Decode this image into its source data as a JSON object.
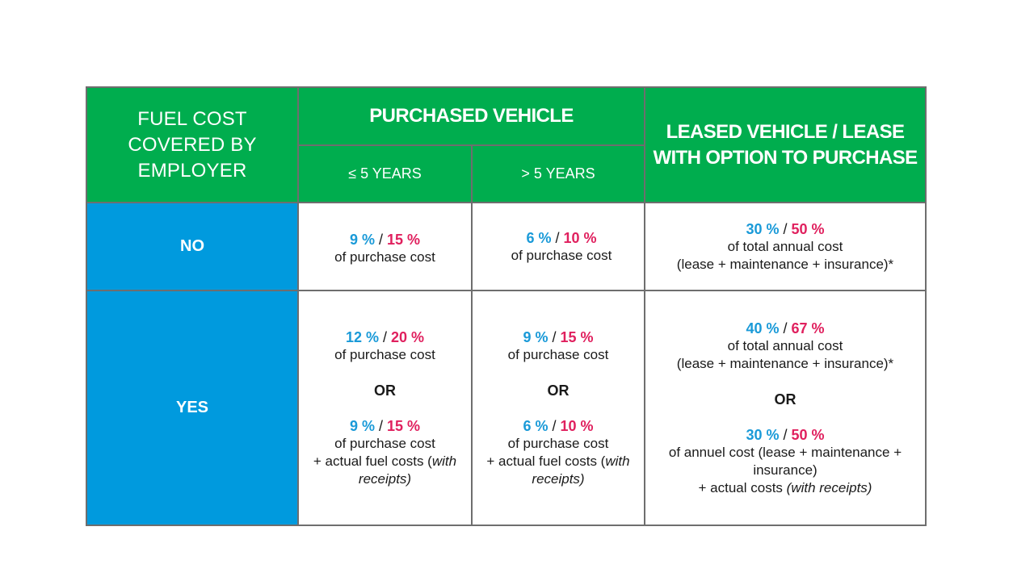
{
  "header": {
    "fuel_cost": [
      "FUEL COST",
      "COVERED BY",
      "EMPLOYER"
    ],
    "purchased": "PURCHASED VEHICLE",
    "le5": "≤ 5 YEARS",
    "gt5": "> 5 YEARS",
    "leased": [
      "LEASED VEHICLE / LEASE",
      "WITH OPTION TO PURCHASE"
    ]
  },
  "rows": {
    "no": {
      "label": "NO",
      "le5": {
        "a": "9 %",
        "b": "15 %",
        "text": "of purchase cost"
      },
      "gt5": {
        "a": "6 %",
        "b": "10 %",
        "text": "of purchase cost"
      },
      "leased": {
        "a": "30 %",
        "b": "50 %",
        "text1": "of total annual cost",
        "text2": "(lease + maintenance + insurance)*"
      }
    },
    "yes": {
      "label": "YES",
      "or": "OR",
      "le5": {
        "a": "12 %",
        "b": "20 %",
        "text": "of purchase cost",
        "a2": "9 %",
        "b2": "15 %",
        "text2": "of purchase cost",
        "text3": "+ actual fuel costs (",
        "text3_italic": "with",
        "text4_italic": "receipts)"
      },
      "gt5": {
        "a": "9 %",
        "b": "15 %",
        "text": "of purchase cost",
        "a2": "6 %",
        "b2": "10 %",
        "text2": "of purchase cost",
        "text3": "+ actual fuel costs (",
        "text3_italic": "with",
        "text4_italic": "receipts)"
      },
      "leased": {
        "a": "40 %",
        "b": "67 %",
        "text1": "of total annual cost",
        "text2": "(lease + maintenance + insurance)*",
        "a2": "30 %",
        "b2": "50 %",
        "text3": "of annuel cost (lease + maintenance +",
        "text4": "insurance)",
        "text5": "+ actual costs  ",
        "text5_italic": "(with receipts)"
      }
    }
  },
  "slash": "/",
  "colors": {
    "green": "#00ad4e",
    "blue": "#009ade",
    "rate_blue": "#1a9ad8",
    "rate_pink": "#e0205e"
  }
}
